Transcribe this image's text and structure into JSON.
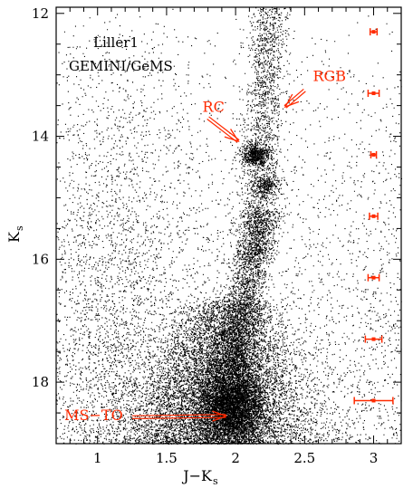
{
  "chart_data": {
    "type": "scatter",
    "title_lines": [
      "Liller1",
      "GEMINI/GeMS"
    ],
    "xlabel": "J−K",
    "xlabel_sub": "s",
    "ylabel": "K",
    "ylabel_sub": "s",
    "xlim": [
      0.7,
      3.2
    ],
    "ylim": [
      19.0,
      11.9
    ],
    "y_inverted": true,
    "grid": false,
    "x_ticks": [
      {
        "value": 1,
        "label": "1"
      },
      {
        "value": 1.5,
        "label": "1.5"
      },
      {
        "value": 2,
        "label": "2"
      },
      {
        "value": 2.5,
        "label": "2.5"
      },
      {
        "value": 3,
        "label": "3"
      }
    ],
    "y_ticks": [
      {
        "value": 12,
        "label": "12"
      },
      {
        "value": 14,
        "label": "14"
      },
      {
        "value": 16,
        "label": "16"
      },
      {
        "value": 18,
        "label": "18"
      }
    ],
    "point_color": "#000000",
    "annotation_color": "#ff2a00",
    "annotations": [
      {
        "text": "RC",
        "text_at": [
          1.76,
          13.6
        ],
        "arrow_from": [
          1.8,
          13.7
        ],
        "arrow_to": [
          2.02,
          14.08
        ]
      },
      {
        "text": "RGB",
        "text_at": [
          2.56,
          13.1
        ],
        "arrow_from": [
          2.5,
          13.25
        ],
        "arrow_to": [
          2.36,
          13.52
        ]
      },
      {
        "text": "MS−TO",
        "text_at": [
          0.76,
          18.62
        ],
        "arrow_from": [
          1.25,
          18.57
        ],
        "arrow_to": [
          1.93,
          18.55
        ]
      }
    ],
    "error_bars": [
      {
        "x": 3.0,
        "y": 12.3,
        "xerr": 0.025
      },
      {
        "x": 3.0,
        "y": 13.3,
        "xerr": 0.04
      },
      {
        "x": 3.0,
        "y": 14.3,
        "xerr": 0.02
      },
      {
        "x": 3.0,
        "y": 15.3,
        "xerr": 0.03
      },
      {
        "x": 3.0,
        "y": 16.3,
        "xerr": 0.04
      },
      {
        "x": 3.0,
        "y": 17.3,
        "xerr": 0.06
      },
      {
        "x": 3.0,
        "y": 18.3,
        "xerr": 0.14
      }
    ],
    "populations": [
      {
        "name": "field",
        "n": 5500,
        "x_range": [
          0.7,
          3.2
        ],
        "y_range": [
          11.9,
          19.0
        ],
        "weight_faint": 1.8
      },
      {
        "name": "main-sequence",
        "n": 9000,
        "x_center": 1.9,
        "x_sigma": 0.16,
        "y_range": [
          16.6,
          19.0
        ]
      },
      {
        "name": "ms-turnoff",
        "n": 5000,
        "x_center": 1.98,
        "x_sigma": 0.12,
        "y_center": 18.4,
        "y_sigma": 0.35
      },
      {
        "name": "subgiant-branch",
        "n": 2200,
        "x_start": 1.95,
        "x_end": 2.2,
        "y_start": 17.8,
        "y_end": 15.2,
        "x_sigma": 0.07
      },
      {
        "name": "red-giant-branch",
        "n": 1700,
        "x_start": 2.12,
        "x_end": 2.25,
        "y_start": 16.0,
        "y_end": 11.9,
        "x_sigma": 0.07
      },
      {
        "name": "red-clump",
        "n": 650,
        "x_center": 2.14,
        "y_center": 14.3,
        "x_sigma": 0.05,
        "y_sigma": 0.09
      },
      {
        "name": "clump-secondary",
        "n": 300,
        "x_center": 2.22,
        "y_center": 14.8,
        "x_sigma": 0.05,
        "y_sigma": 0.1
      }
    ]
  }
}
